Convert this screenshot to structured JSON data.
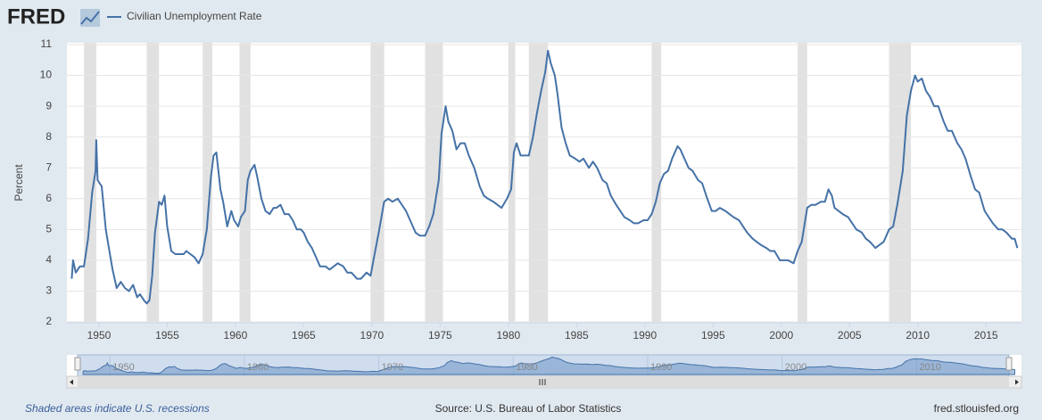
{
  "logo": "FRED",
  "chart_data": {
    "type": "line",
    "y_label": "Percent",
    "x": [
      1948.0,
      1948.1,
      1948.3,
      1948.6,
      1948.9,
      1949.2,
      1949.5,
      1949.75,
      1949.8,
      1949.9,
      1950.2,
      1950.5,
      1950.8,
      1951.0,
      1951.3,
      1951.6,
      1951.9,
      1952.2,
      1952.5,
      1952.8,
      1953.0,
      1953.3,
      1953.5,
      1953.7,
      1953.9,
      1954.1,
      1954.4,
      1954.6,
      1954.8,
      1955.0,
      1955.3,
      1955.6,
      1955.9,
      1956.2,
      1956.4,
      1956.7,
      1957.0,
      1957.3,
      1957.6,
      1957.9,
      1958.2,
      1958.4,
      1958.6,
      1958.9,
      1959.1,
      1959.4,
      1959.7,
      1959.9,
      1960.2,
      1960.4,
      1960.7,
      1960.9,
      1961.1,
      1961.4,
      1961.6,
      1961.9,
      1962.2,
      1962.5,
      1962.8,
      1963.0,
      1963.3,
      1963.6,
      1963.9,
      1964.2,
      1964.5,
      1964.8,
      1965.0,
      1965.3,
      1965.6,
      1965.9,
      1966.2,
      1966.6,
      1966.9,
      1967.2,
      1967.5,
      1967.9,
      1968.2,
      1968.5,
      1968.9,
      1969.2,
      1969.6,
      1969.9,
      1970.2,
      1970.5,
      1970.9,
      1971.2,
      1971.5,
      1971.9,
      1972.2,
      1972.5,
      1972.9,
      1973.2,
      1973.5,
      1973.9,
      1974.2,
      1974.5,
      1974.9,
      1975.1,
      1975.4,
      1975.6,
      1975.9,
      1976.2,
      1976.5,
      1976.8,
      1977.1,
      1977.5,
      1977.9,
      1978.2,
      1978.5,
      1978.9,
      1979.2,
      1979.5,
      1979.9,
      1980.2,
      1980.4,
      1980.6,
      1980.9,
      1981.2,
      1981.5,
      1981.8,
      1982.1,
      1982.4,
      1982.7,
      1982.9,
      1983.1,
      1983.4,
      1983.6,
      1983.9,
      1984.2,
      1984.5,
      1984.9,
      1985.2,
      1985.5,
      1985.9,
      1986.2,
      1986.5,
      1986.9,
      1987.2,
      1987.5,
      1987.9,
      1988.2,
      1988.5,
      1988.9,
      1989.2,
      1989.5,
      1989.9,
      1990.2,
      1990.5,
      1990.8,
      1991.1,
      1991.4,
      1991.7,
      1992.0,
      1992.4,
      1992.6,
      1992.9,
      1993.2,
      1993.5,
      1993.9,
      1994.2,
      1994.5,
      1994.9,
      1995.2,
      1995.5,
      1995.9,
      1996.2,
      1996.5,
      1996.9,
      1997.2,
      1997.5,
      1997.9,
      1998.2,
      1998.5,
      1998.9,
      1999.2,
      1999.5,
      1999.9,
      2000.2,
      2000.5,
      2000.9,
      2001.2,
      2001.5,
      2001.9,
      2002.2,
      2002.5,
      2002.9,
      2003.2,
      2003.45,
      2003.7,
      2003.9,
      2004.2,
      2004.5,
      2004.9,
      2005.2,
      2005.5,
      2005.9,
      2006.2,
      2006.5,
      2006.9,
      2007.2,
      2007.5,
      2007.9,
      2008.2,
      2008.5,
      2008.9,
      2009.2,
      2009.5,
      2009.8,
      2010.0,
      2010.3,
      2010.6,
      2010.9,
      2011.2,
      2011.5,
      2011.9,
      2012.2,
      2012.5,
      2012.9,
      2013.2,
      2013.5,
      2013.9,
      2014.2,
      2014.5,
      2014.9,
      2015.2,
      2015.5,
      2015.9,
      2016.2,
      2016.5,
      2016.9,
      2017.1,
      2017.3
    ],
    "series": [
      {
        "name": "Civilian Unemployment Rate",
        "color": "#4572a7",
        "values": [
          3.4,
          4.0,
          3.6,
          3.8,
          3.8,
          4.7,
          6.2,
          6.9,
          7.9,
          6.6,
          6.4,
          5.0,
          4.2,
          3.7,
          3.1,
          3.3,
          3.1,
          3.0,
          3.2,
          2.8,
          2.9,
          2.7,
          2.6,
          2.7,
          3.5,
          4.9,
          5.9,
          5.8,
          6.1,
          5.1,
          4.3,
          4.2,
          4.2,
          4.2,
          4.3,
          4.2,
          4.1,
          3.9,
          4.2,
          5.0,
          6.7,
          7.4,
          7.5,
          6.3,
          5.9,
          5.1,
          5.6,
          5.3,
          5.1,
          5.4,
          5.6,
          6.6,
          6.9,
          7.1,
          6.7,
          6.0,
          5.6,
          5.5,
          5.7,
          5.7,
          5.8,
          5.5,
          5.5,
          5.3,
          5.0,
          5.0,
          4.9,
          4.6,
          4.4,
          4.1,
          3.8,
          3.8,
          3.7,
          3.8,
          3.9,
          3.8,
          3.6,
          3.6,
          3.4,
          3.4,
          3.6,
          3.5,
          4.2,
          4.9,
          5.9,
          6.0,
          5.9,
          6.0,
          5.8,
          5.6,
          5.2,
          4.9,
          4.8,
          4.8,
          5.1,
          5.5,
          6.6,
          8.1,
          9.0,
          8.5,
          8.2,
          7.6,
          7.8,
          7.8,
          7.4,
          7.0,
          6.4,
          6.1,
          6.0,
          5.9,
          5.8,
          5.7,
          6.0,
          6.3,
          7.5,
          7.8,
          7.4,
          7.4,
          7.4,
          8.0,
          8.8,
          9.5,
          10.1,
          10.8,
          10.4,
          10.0,
          9.4,
          8.3,
          7.8,
          7.4,
          7.3,
          7.2,
          7.3,
          7.0,
          7.2,
          7.0,
          6.6,
          6.5,
          6.1,
          5.8,
          5.6,
          5.4,
          5.3,
          5.2,
          5.2,
          5.3,
          5.3,
          5.5,
          5.9,
          6.5,
          6.8,
          6.9,
          7.3,
          7.7,
          7.6,
          7.3,
          7.0,
          6.9,
          6.6,
          6.5,
          6.1,
          5.6,
          5.6,
          5.7,
          5.6,
          5.5,
          5.4,
          5.3,
          5.1,
          4.9,
          4.7,
          4.6,
          4.5,
          4.4,
          4.3,
          4.3,
          4.0,
          4.0,
          4.0,
          3.9,
          4.3,
          4.6,
          5.7,
          5.8,
          5.8,
          5.9,
          5.9,
          6.3,
          6.1,
          5.7,
          5.6,
          5.5,
          5.4,
          5.2,
          5.0,
          4.9,
          4.7,
          4.6,
          4.4,
          4.5,
          4.6,
          5.0,
          5.1,
          5.8,
          6.9,
          8.7,
          9.5,
          10.0,
          9.8,
          9.9,
          9.5,
          9.3,
          9.0,
          9.0,
          8.5,
          8.2,
          8.2,
          7.8,
          7.6,
          7.3,
          6.7,
          6.3,
          6.2,
          5.6,
          5.4,
          5.2,
          5.0,
          5.0,
          4.9,
          4.7,
          4.7,
          4.4
        ]
      }
    ],
    "xlim": [
      1947.65,
      2017.6
    ],
    "ylim": [
      2,
      11
    ],
    "xticks": [
      1950,
      1955,
      1960,
      1965,
      1970,
      1975,
      1980,
      1985,
      1990,
      1995,
      2000,
      2005,
      2010,
      2015
    ],
    "yticks": [
      2,
      3,
      4,
      5,
      6,
      7,
      8,
      9,
      10,
      11
    ],
    "grid": true,
    "recessions": [
      [
        1948.9,
        1949.8
      ],
      [
        1953.5,
        1954.4
      ],
      [
        1957.6,
        1958.3
      ],
      [
        1960.3,
        1961.1
      ],
      [
        1969.9,
        1970.9
      ],
      [
        1973.9,
        1975.2
      ],
      [
        1980.0,
        1980.5
      ],
      [
        1981.5,
        1982.9
      ],
      [
        1990.5,
        1991.2
      ],
      [
        2001.2,
        2001.9
      ],
      [
        2007.9,
        2009.5
      ]
    ],
    "recession_color": "#e1e1e1",
    "navigator": {
      "xlim": [
        1946.8,
        2017.8
      ],
      "xticks": [
        1950,
        1960,
        1970,
        1980,
        1990,
        2000,
        2010
      ]
    }
  },
  "footer": {
    "note": "Shaded areas indicate U.S. recessions",
    "source": "Source: U.S. Bureau of Labor Statistics",
    "url": "fred.stlouisfed.org"
  }
}
